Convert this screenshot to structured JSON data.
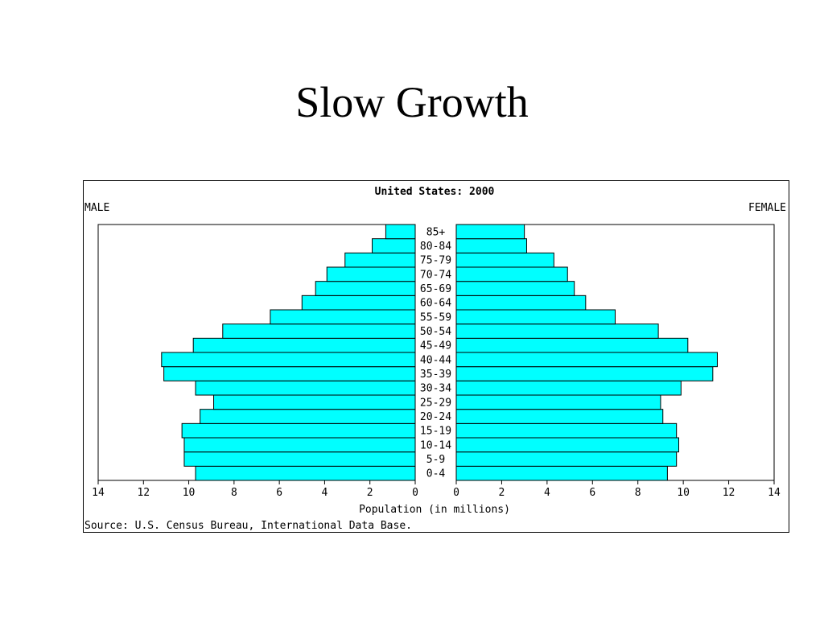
{
  "slide": {
    "title": "Slow Growth"
  },
  "chart_data": {
    "type": "bar",
    "orientation": "horizontal",
    "subtype": "population-pyramid",
    "title": "United States: 2000",
    "left_label": "MALE",
    "right_label": "FEMALE",
    "xlabel": "Population (in millions)",
    "source": "Source: U.S. Census Bureau, International Data Base.",
    "xlim": [
      0,
      14
    ],
    "xticks": [
      0,
      2,
      4,
      6,
      8,
      10,
      12,
      14
    ],
    "categories": [
      "0-4",
      "5-9",
      "10-14",
      "15-19",
      "20-24",
      "25-29",
      "30-34",
      "35-39",
      "40-44",
      "45-49",
      "50-54",
      "55-59",
      "60-64",
      "65-69",
      "70-74",
      "75-79",
      "80-84",
      "85+"
    ],
    "series": [
      {
        "name": "MALE",
        "values": [
          9.7,
          10.2,
          10.2,
          10.3,
          9.5,
          8.9,
          9.7,
          11.1,
          11.2,
          9.8,
          8.5,
          6.4,
          5.0,
          4.4,
          3.9,
          3.1,
          1.9,
          1.3
        ]
      },
      {
        "name": "FEMALE",
        "values": [
          9.3,
          9.7,
          9.8,
          9.7,
          9.1,
          9.0,
          9.9,
          11.3,
          11.5,
          10.2,
          8.9,
          7.0,
          5.7,
          5.2,
          4.9,
          4.3,
          3.1,
          3.0
        ]
      }
    ],
    "colors": {
      "bar_fill": "#00FFFF",
      "bar_stroke": "#000000"
    }
  }
}
